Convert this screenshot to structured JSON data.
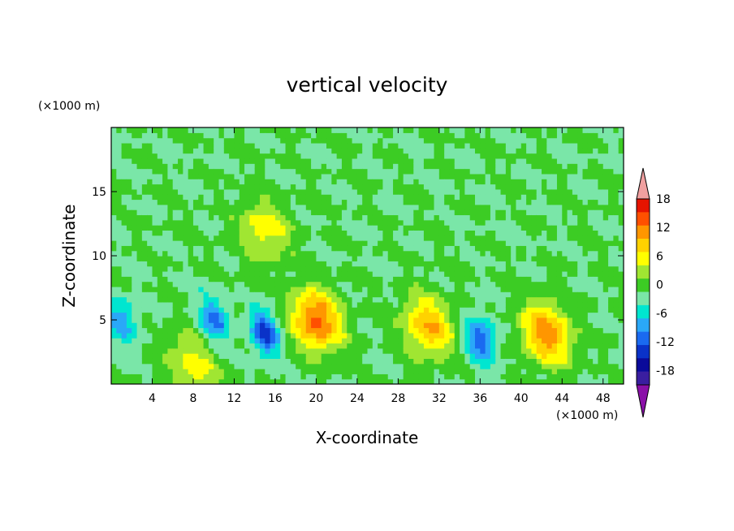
{
  "chart_data": {
    "type": "heatmap",
    "title": "vertical velocity",
    "xlabel": "X-coordinate",
    "ylabel": "Z-coordinate",
    "x_unit": "(×1000 m)",
    "y_unit": "(×1000 m)",
    "xlim": [
      0,
      50
    ],
    "ylim": [
      0,
      20
    ],
    "x_ticks": [
      4,
      8,
      12,
      16,
      20,
      24,
      28,
      32,
      36,
      40,
      44,
      48
    ],
    "y_ticks": [
      5,
      10,
      15
    ],
    "grid": false,
    "colorbar": {
      "placement": "right",
      "ticks": [
        18,
        12,
        6,
        0,
        -6,
        -12,
        -18
      ],
      "levels": [
        -21,
        -18,
        -15,
        -12,
        -9,
        -6,
        -3,
        0,
        3,
        6,
        9,
        12,
        15,
        18,
        21
      ],
      "colors": [
        "#8a10a8",
        "#3a1ea0",
        "#0a0a9a",
        "#0a32c8",
        "#1a6af0",
        "#2aa8f8",
        "#00e6d0",
        "#7ae6a8",
        "#3ccc24",
        "#a0e632",
        "#ffff00",
        "#ffd200",
        "#ff9600",
        "#ff5000",
        "#e61400",
        "#f0a0a0"
      ]
    },
    "features": [
      {
        "kind": "updraft",
        "x": 20.0,
        "z": 5.0,
        "peak": 16
      },
      {
        "kind": "updraft",
        "x": 31.0,
        "z": 4.5,
        "peak": 12
      },
      {
        "kind": "updraft",
        "x": 42.5,
        "z": 4.0,
        "peak": 14
      },
      {
        "kind": "downdraft",
        "x": 15.0,
        "z": 4.0,
        "peak": -13
      },
      {
        "kind": "downdraft",
        "x": 10.0,
        "z": 5.0,
        "peak": -10
      },
      {
        "kind": "downdraft",
        "x": 36.0,
        "z": 3.5,
        "peak": -11
      },
      {
        "kind": "downdraft",
        "x": 1.0,
        "z": 5.0,
        "peak": -8
      },
      {
        "kind": "updraft",
        "x": 8.0,
        "z": 1.5,
        "peak": 8
      },
      {
        "kind": "updraft",
        "x": 15.0,
        "z": 12.0,
        "peak": 8
      }
    ]
  }
}
